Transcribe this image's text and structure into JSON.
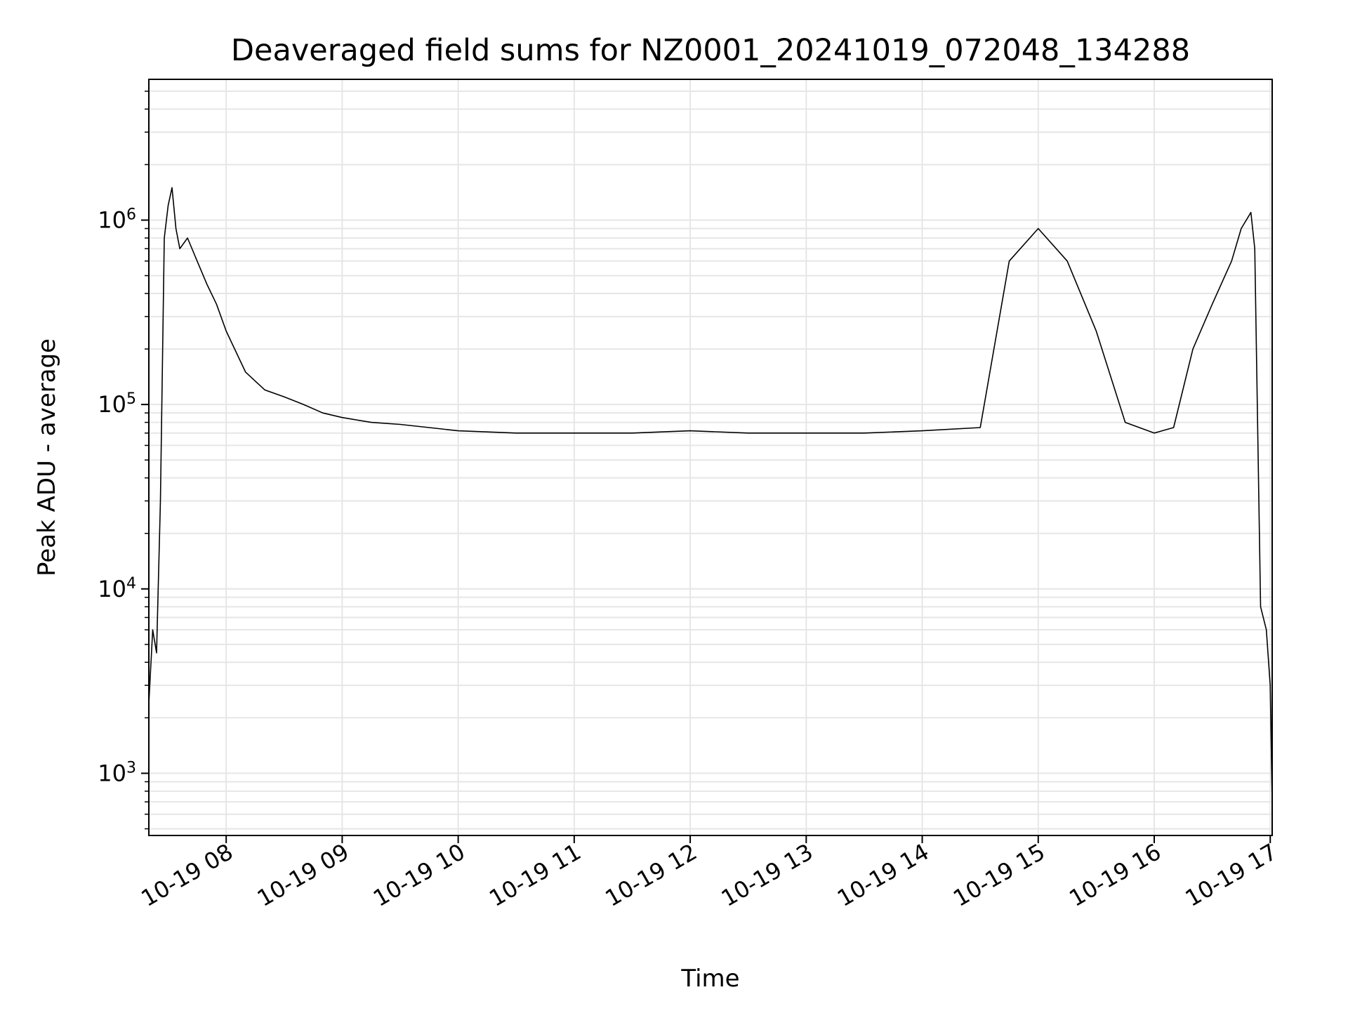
{
  "chart_data": {
    "type": "line",
    "title": "Deaveraged field sums for NZ0001_20241019_072048_134288",
    "xlabel": "Time",
    "ylabel": "Peak ADU - average",
    "yscale": "log",
    "ylim": [
      460,
      5800000
    ],
    "xlim": [
      "2024-10-19 07:20",
      "2024-10-19 17:01"
    ],
    "grid": true,
    "line_color": "#000000",
    "grid_color": "#e6e6e6",
    "x_ticks": [
      "10-19 08",
      "10-19 09",
      "10-19 10",
      "10-19 11",
      "10-19 12",
      "10-19 13",
      "10-19 14",
      "10-19 15",
      "10-19 16",
      "10-19 17"
    ],
    "y_ticks": [
      {
        "base": "10",
        "exp": "3"
      },
      {
        "base": "10",
        "exp": "4"
      },
      {
        "base": "10",
        "exp": "5"
      },
      {
        "base": "10",
        "exp": "6"
      }
    ],
    "series": [
      {
        "x": [
          "2024-10-19 07:20",
          "2024-10-19 07:22",
          "2024-10-19 07:24",
          "2024-10-19 07:26",
          "2024-10-19 07:28",
          "2024-10-19 07:30",
          "2024-10-19 07:32",
          "2024-10-19 07:34",
          "2024-10-19 07:36",
          "2024-10-19 07:40",
          "2024-10-19 07:45",
          "2024-10-19 07:50",
          "2024-10-19 07:55",
          "2024-10-19 08:00",
          "2024-10-19 08:10",
          "2024-10-19 08:20",
          "2024-10-19 08:30",
          "2024-10-19 08:40",
          "2024-10-19 08:50",
          "2024-10-19 09:00",
          "2024-10-19 09:15",
          "2024-10-19 09:30",
          "2024-10-19 09:45",
          "2024-10-19 10:00",
          "2024-10-19 10:30",
          "2024-10-19 11:00",
          "2024-10-19 11:30",
          "2024-10-19 12:00",
          "2024-10-19 12:30",
          "2024-10-19 13:00",
          "2024-10-19 13:30",
          "2024-10-19 14:00",
          "2024-10-19 14:30",
          "2024-10-19 14:45",
          "2024-10-19 15:00",
          "2024-10-19 15:15",
          "2024-10-19 15:30",
          "2024-10-19 15:45",
          "2024-10-19 16:00",
          "2024-10-19 16:10",
          "2024-10-19 16:20",
          "2024-10-19 16:30",
          "2024-10-19 16:40",
          "2024-10-19 16:45",
          "2024-10-19 16:50",
          "2024-10-19 16:52",
          "2024-10-19 16:55",
          "2024-10-19 16:58",
          "2024-10-19 17:00",
          "2024-10-19 17:01"
        ],
        "y": [
          2400,
          6000,
          4500,
          30000,
          800000,
          1200000,
          1500000,
          900000,
          700000,
          800000,
          600000,
          450000,
          350000,
          250000,
          150000,
          120000,
          110000,
          100000,
          90000,
          85000,
          80000,
          78000,
          75000,
          72000,
          70000,
          70000,
          70000,
          72000,
          70000,
          70000,
          70000,
          72000,
          75000,
          600000,
          900000,
          600000,
          250000,
          80000,
          70000,
          75000,
          200000,
          350000,
          600000,
          900000,
          1100000,
          700000,
          8000,
          6000,
          3000,
          700
        ]
      }
    ]
  }
}
